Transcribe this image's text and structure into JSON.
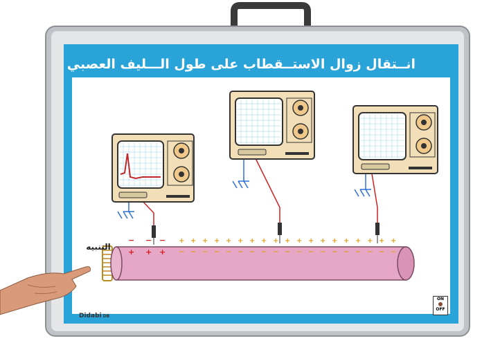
{
  "board": {
    "title": "انــتقال زوال الاستــقطاب على طول الـــليف العصبي",
    "stimulus_label": "التنبيه",
    "brand": "Didabi",
    "brand_suffix": "DB",
    "switch_on": "ON",
    "switch_off": "OFF"
  },
  "colors": {
    "frame": "#c8ccd0",
    "panel_border": "#29a3d8",
    "nerve_fiber": "#e6a6c6",
    "oscilloscope_body": "#f2dfb8",
    "negative_charge": "#d22020",
    "positive_charge": "#e0a020",
    "probe_wire": "#d02020"
  },
  "oscilloscopes": [
    {
      "id": "left",
      "shows_action_potential": true
    },
    {
      "id": "middle",
      "shows_action_potential": false
    },
    {
      "id": "right",
      "shows_action_potential": false
    }
  ]
}
